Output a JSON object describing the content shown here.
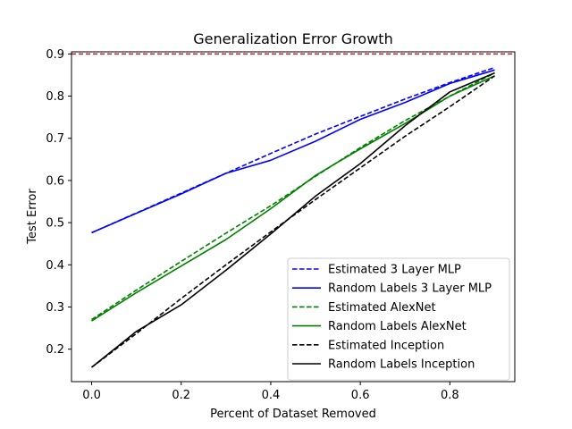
{
  "chart_data": {
    "type": "line",
    "title": "Generalization Error Growth",
    "xlabel": "Percent of Dataset Removed",
    "ylabel": "Test Error",
    "xlim": [
      -0.045,
      0.945
    ],
    "ylim": [
      0.123,
      0.905
    ],
    "xticks": [
      0.0,
      0.2,
      0.4,
      0.6,
      0.8
    ],
    "yticks": [
      0.2,
      0.3,
      0.4,
      0.5,
      0.6,
      0.7,
      0.8,
      0.9
    ],
    "xtick_labels": [
      "0.0",
      "0.2",
      "0.4",
      "0.6",
      "0.8"
    ],
    "ytick_labels": [
      "0.2",
      "0.3",
      "0.4",
      "0.5",
      "0.6",
      "0.7",
      "0.8",
      "0.9"
    ],
    "legend_position": "lower-right",
    "grid": false,
    "reference_line": {
      "y": 0.9,
      "color": "#b22222",
      "style": "dashed"
    },
    "series": [
      {
        "name": "Estimated 3 Layer MLP",
        "color": "#0000ff",
        "style": "dashed",
        "x": [
          0.0,
          0.1,
          0.2,
          0.3,
          0.4,
          0.5,
          0.6,
          0.7,
          0.8,
          0.9
        ],
        "y": [
          0.476,
          0.523,
          0.57,
          0.617,
          0.664,
          0.71,
          0.752,
          0.793,
          0.832,
          0.868
        ]
      },
      {
        "name": "Random Labels 3 Layer MLP",
        "color": "#0000ff",
        "style": "solid",
        "x": [
          0.0,
          0.1,
          0.2,
          0.3,
          0.4,
          0.5,
          0.6,
          0.7,
          0.8,
          0.9
        ],
        "y": [
          0.476,
          0.522,
          0.568,
          0.617,
          0.648,
          0.693,
          0.745,
          0.785,
          0.83,
          0.862
        ]
      },
      {
        "name": "Estimated AlexNet",
        "color": "#008000",
        "style": "dashed",
        "x": [
          0.0,
          0.1,
          0.2,
          0.3,
          0.4,
          0.5,
          0.6,
          0.7,
          0.8,
          0.9
        ],
        "y": [
          0.27,
          0.34,
          0.408,
          0.475,
          0.54,
          0.61,
          0.678,
          0.742,
          0.8,
          0.855
        ]
      },
      {
        "name": "Random Labels AlexNet",
        "color": "#008000",
        "style": "solid",
        "x": [
          0.0,
          0.1,
          0.2,
          0.3,
          0.4,
          0.5,
          0.6,
          0.7,
          0.8,
          0.9
        ],
        "y": [
          0.267,
          0.334,
          0.397,
          0.46,
          0.533,
          0.612,
          0.675,
          0.735,
          0.8,
          0.848
        ]
      },
      {
        "name": "Estimated Inception",
        "color": "#000000",
        "style": "dashed",
        "x": [
          0.0,
          0.1,
          0.2,
          0.3,
          0.4,
          0.5,
          0.6,
          0.7,
          0.8,
          0.9
        ],
        "y": [
          0.157,
          0.237,
          0.32,
          0.4,
          0.478,
          0.555,
          0.63,
          0.705,
          0.775,
          0.848
        ]
      },
      {
        "name": "Random Labels Inception",
        "color": "#000000",
        "style": "solid",
        "x": [
          0.0,
          0.1,
          0.2,
          0.3,
          0.4,
          0.5,
          0.6,
          0.7,
          0.8,
          0.9
        ],
        "y": [
          0.157,
          0.242,
          0.305,
          0.387,
          0.473,
          0.563,
          0.64,
          0.73,
          0.81,
          0.855
        ]
      }
    ]
  }
}
